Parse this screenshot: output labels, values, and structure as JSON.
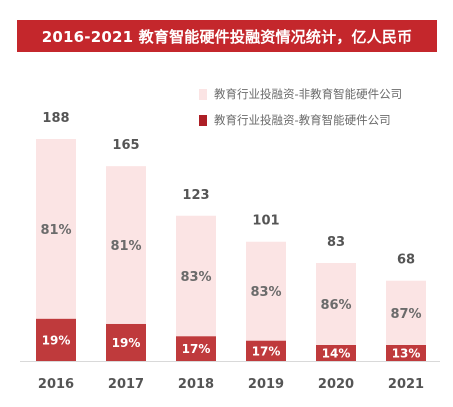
{
  "title": "2016-2021 教育智能硬件投融资情况统计，亿人民币",
  "colors": {
    "title_bg": "#c4272c",
    "non_edu": "#fbe4e4",
    "edu": "#bf3a3c",
    "edu_dark": "#ad1f26",
    "text": "#6b6b6b"
  },
  "chart_data": {
    "type": "bar",
    "stacked": true,
    "categories": [
      "2016",
      "2017",
      "2018",
      "2019",
      "2020",
      "2021"
    ],
    "totals": [
      188,
      165,
      123,
      101,
      83,
      68
    ],
    "series": [
      {
        "name": "教育行业投融资-教育智能硬件公司",
        "percent_labels": [
          "19%",
          "19%",
          "17%",
          "17%",
          "14%",
          "13%"
        ]
      },
      {
        "name": "教育行业投融资-非教育智能硬件公司",
        "percent_labels": [
          "81%",
          "81%",
          "83%",
          "83%",
          "86%",
          "87%"
        ]
      }
    ],
    "legend_position": "top-right",
    "grid": false
  }
}
